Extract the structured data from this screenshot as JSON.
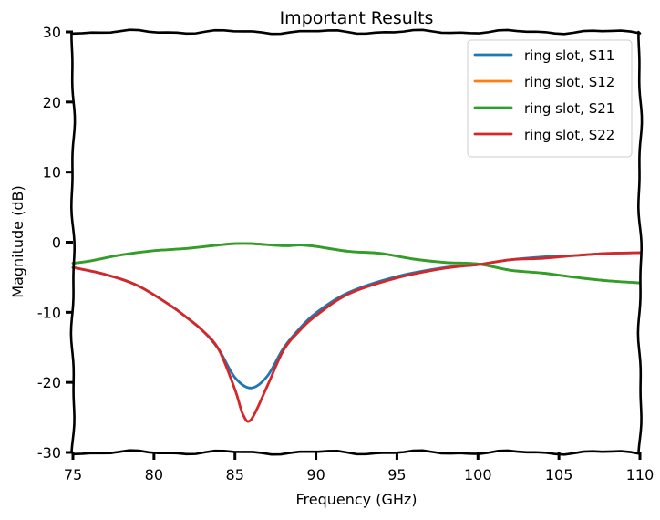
{
  "chart_data": {
    "type": "line",
    "title": "Important Results",
    "xlabel": "Frequency (GHz)",
    "ylabel": "Magnitude (dB)",
    "xlim": [
      75,
      110
    ],
    "ylim": [
      -30,
      30
    ],
    "x_ticks": [
      75,
      80,
      85,
      90,
      95,
      100,
      105,
      110
    ],
    "y_ticks": [
      30,
      20,
      10,
      0,
      -10,
      -20,
      -30
    ],
    "grid": false,
    "legend_position": "top-right",
    "series": [
      {
        "name": "ring slot, S11",
        "color": "#1f77b4",
        "x": [
          75,
          77,
          79,
          81,
          82,
          83,
          84,
          85,
          86,
          87,
          88,
          89,
          90,
          92,
          95,
          98,
          100,
          102,
          104,
          106,
          108,
          110
        ],
        "y": [
          -3.6,
          -4.6,
          -6.2,
          -9.0,
          -10.7,
          -12.6,
          -15.3,
          -19.3,
          -20.8,
          -19.1,
          -15.1,
          -12.3,
          -10.1,
          -7.2,
          -4.9,
          -3.6,
          -3.2,
          -2.5,
          -2.1,
          -1.9,
          -1.6,
          -1.5
        ]
      },
      {
        "name": "ring slot, S12",
        "color": "#ff7f0e",
        "x": [
          75,
          76,
          78,
          80,
          82,
          84,
          85,
          86,
          88,
          89,
          90,
          92,
          94,
          96,
          98,
          100,
          102,
          104,
          106,
          108,
          110
        ],
        "y": [
          -3.0,
          -2.7,
          -1.8,
          -1.2,
          -0.9,
          -0.4,
          -0.2,
          -0.2,
          -0.5,
          -0.4,
          -0.6,
          -1.3,
          -1.6,
          -2.4,
          -2.9,
          -3.1,
          -4.0,
          -4.4,
          -5.0,
          -5.5,
          -5.8
        ]
      },
      {
        "name": "ring slot, S21",
        "color": "#2ca02c",
        "x": [
          75,
          76,
          78,
          80,
          82,
          84,
          85,
          86,
          88,
          89,
          90,
          92,
          94,
          96,
          98,
          100,
          102,
          104,
          106,
          108,
          110
        ],
        "y": [
          -3.0,
          -2.7,
          -1.8,
          -1.2,
          -0.9,
          -0.4,
          -0.2,
          -0.2,
          -0.5,
          -0.4,
          -0.6,
          -1.3,
          -1.6,
          -2.4,
          -2.9,
          -3.1,
          -4.0,
          -4.4,
          -5.0,
          -5.5,
          -5.8
        ]
      },
      {
        "name": "ring slot, S22",
        "color": "#d62728",
        "x": [
          75,
          77,
          79,
          81,
          82,
          83,
          84,
          85,
          85.5,
          86,
          87,
          88,
          89,
          90,
          92,
          95,
          98,
          100,
          102,
          104,
          106,
          108,
          110
        ],
        "y": [
          -3.6,
          -4.6,
          -6.2,
          -9.0,
          -10.7,
          -12.6,
          -15.3,
          -21.0,
          -24.6,
          -25.3,
          -20.5,
          -15.4,
          -12.6,
          -10.5,
          -7.4,
          -5.1,
          -3.7,
          -3.2,
          -2.5,
          -2.3,
          -1.9,
          -1.6,
          -1.5
        ]
      }
    ]
  }
}
